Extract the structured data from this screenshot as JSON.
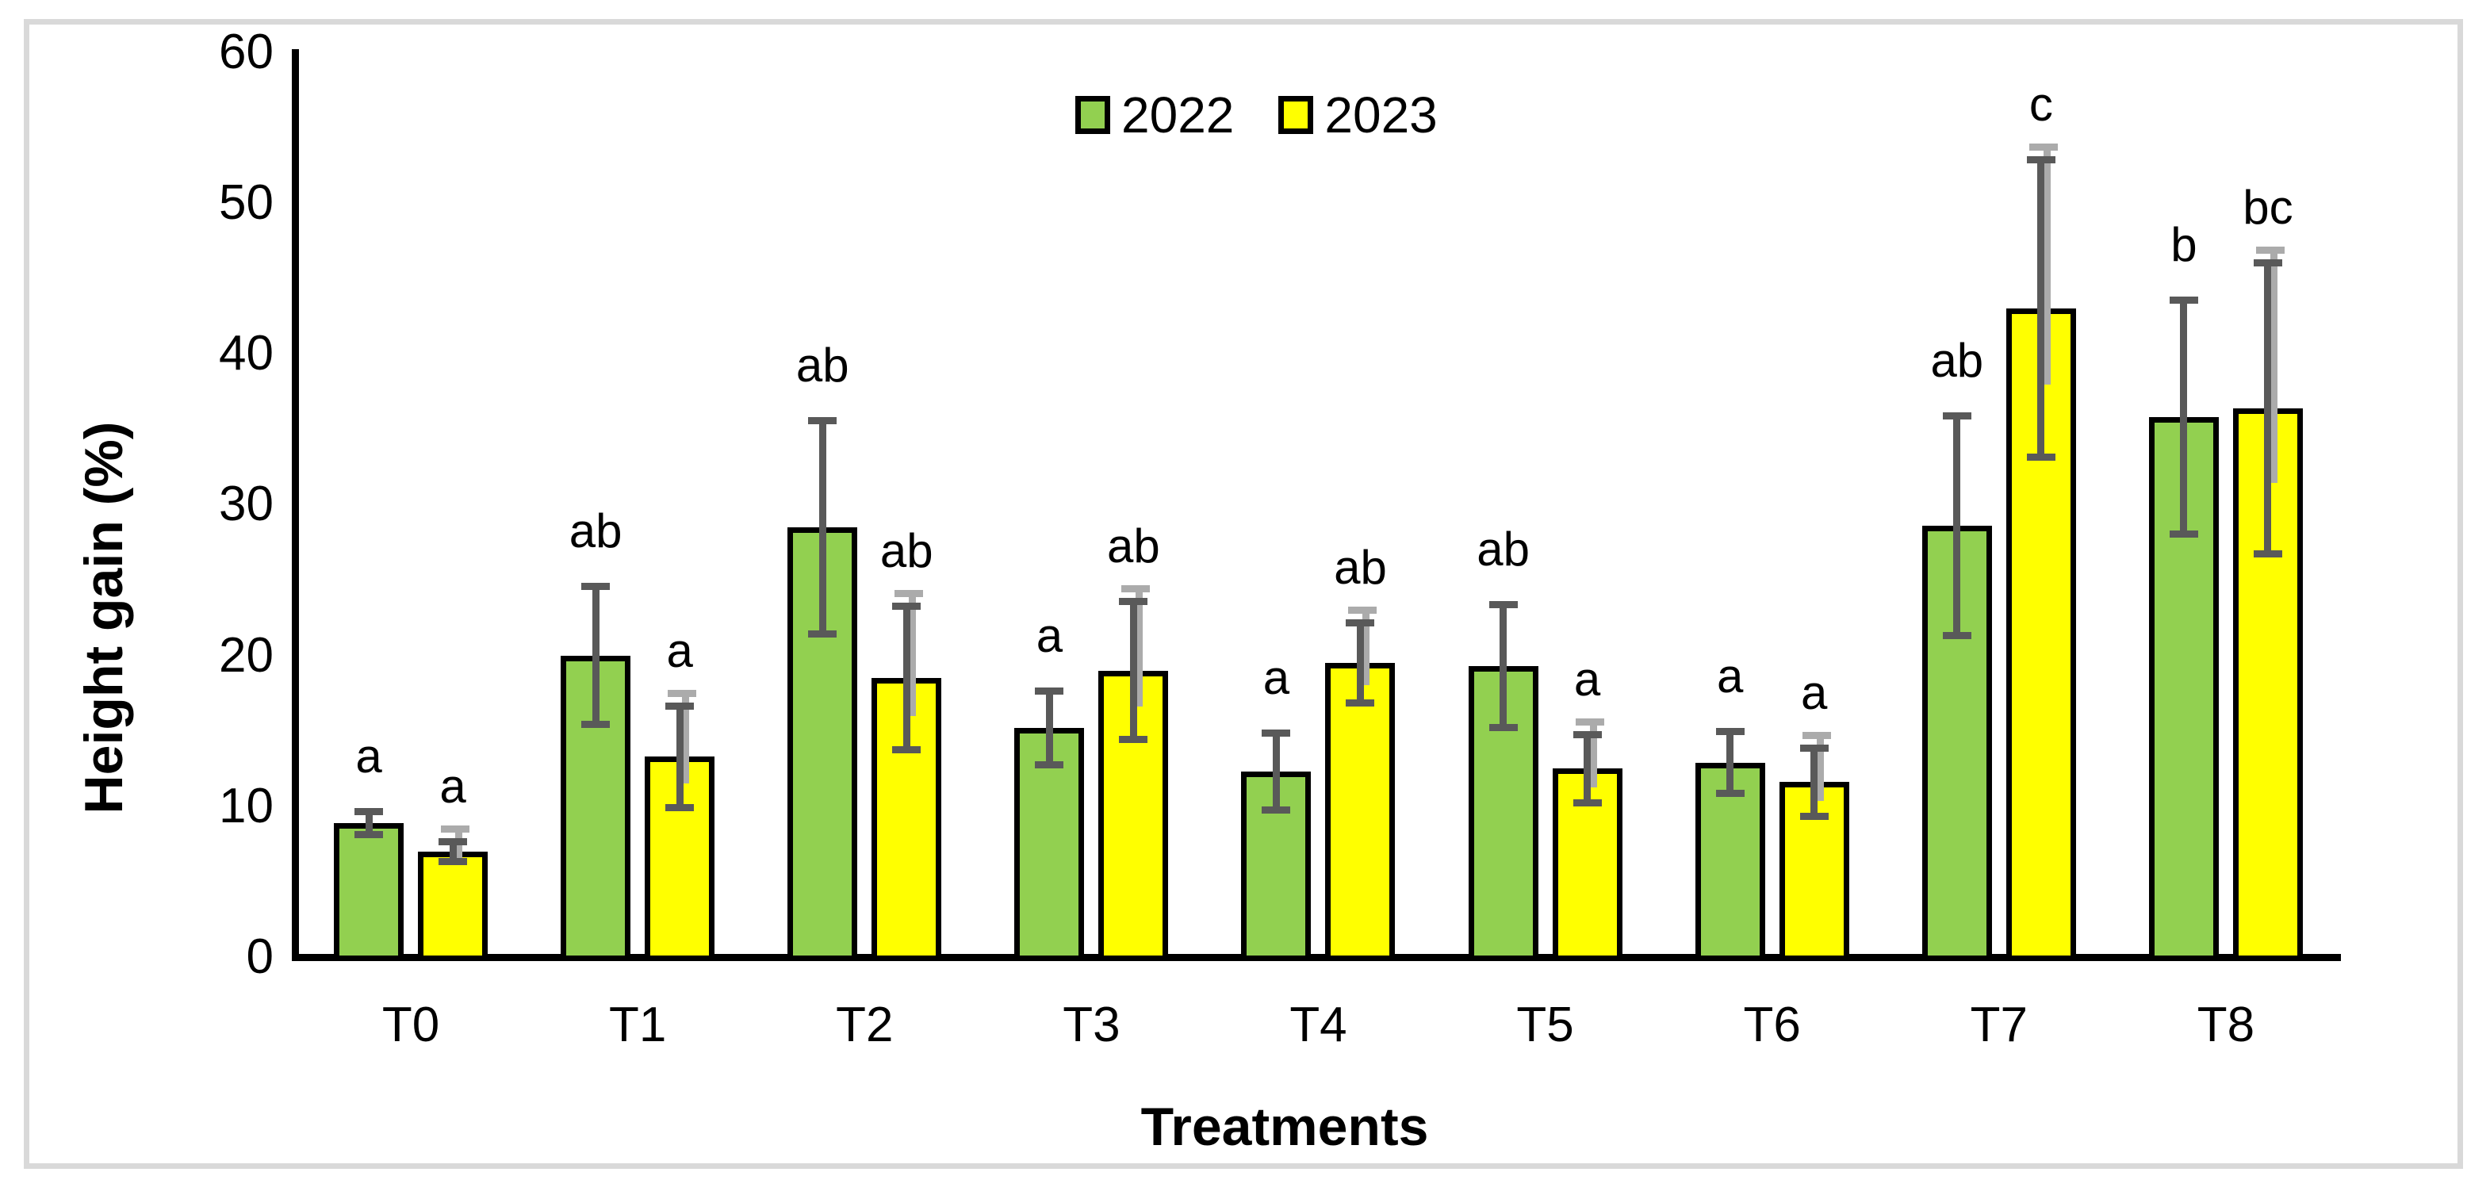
{
  "chart_data": {
    "type": "bar",
    "title": "",
    "xlabel": "Treatments",
    "ylabel": "Height gain (%)",
    "ylim": [
      0,
      60
    ],
    "yticks": [
      0,
      10,
      20,
      30,
      40,
      50,
      60
    ],
    "grid": false,
    "legend_position": "top-center",
    "categories": [
      "T0",
      "T1",
      "T2",
      "T3",
      "T4",
      "T5",
      "T6",
      "T7",
      "T8"
    ],
    "series": [
      {
        "name": "2022",
        "color": "#92D050",
        "error_color": "#595959",
        "values": [
          8.9,
          20.0,
          28.5,
          15.2,
          12.3,
          19.3,
          12.9,
          28.6,
          35.8
        ],
        "errors": [
          1.0,
          4.8,
          7.3,
          2.7,
          2.8,
          4.3,
          2.3,
          7.5,
          8.0
        ],
        "letters": [
          "a",
          "ab",
          "ab",
          "a",
          "a",
          "ab",
          "a",
          "ab",
          "b"
        ]
      },
      {
        "name": "2023",
        "color": "#FFFF00",
        "error_color": "#595959",
        "error_overlay_color": "#ABABAB",
        "values": [
          7.0,
          13.3,
          18.5,
          19.0,
          19.5,
          12.5,
          11.6,
          43.0,
          36.4
        ],
        "errors": [
          0.9,
          3.6,
          5.0,
          4.8,
          2.9,
          2.5,
          2.5,
          10.1,
          9.9
        ],
        "letters": [
          "a",
          "a",
          "ab",
          "ab",
          "ab",
          "a",
          "a",
          "c",
          "bc"
        ]
      }
    ],
    "bar_border_color": "#000000",
    "frame_color": "#D9D9D9"
  }
}
